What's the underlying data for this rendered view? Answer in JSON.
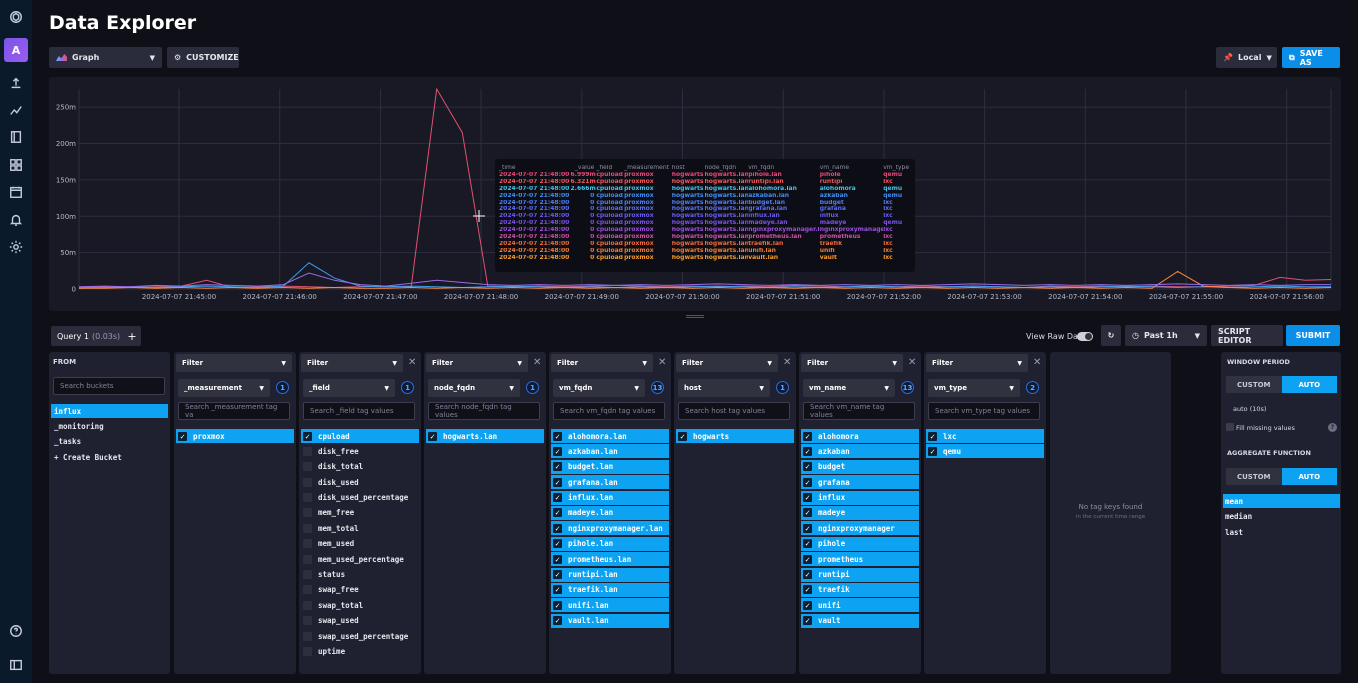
{
  "title": "Data Explorer",
  "nav": {
    "avatar": "A",
    "icons": [
      "logo-icon",
      "upload-icon",
      "graph-icon",
      "book-icon",
      "dashboards-icon",
      "calendar-icon",
      "bell-icon",
      "settings-icon",
      "help-icon",
      "collapse-icon"
    ]
  },
  "toolbar": {
    "graph_label": "Graph",
    "customize_label": "CUSTOMIZE",
    "local_label": "Local",
    "save_as_label": "SAVE AS"
  },
  "chart_data": {
    "type": "line",
    "y_ticks": [
      "250m",
      "200m",
      "150m",
      "100m",
      "50m",
      "0"
    ],
    "ylim": [
      0,
      0.275
    ],
    "x_ticks": [
      "2024-07-07 21:45:00",
      "2024-07-07 21:46:00",
      "2024-07-07 21:47:00",
      "2024-07-07 21:48:00",
      "2024-07-07 21:49:00",
      "2024-07-07 21:50:00",
      "2024-07-07 21:51:00",
      "2024-07-07 21:52:00",
      "2024-07-07 21:53:00",
      "2024-07-07 21:54:00",
      "2024-07-07 21:55:00",
      "2024-07-07 21:56:00"
    ],
    "series": [
      {
        "color": "#e0526e",
        "values": [
          0.002,
          0.003,
          0.002,
          0.003,
          0.004,
          0.012,
          0.002,
          0.003,
          0.004,
          0.003,
          0.002,
          0.003,
          0.004,
          0.003,
          0.275,
          0.215,
          0.004,
          0.003,
          0.004,
          0.003,
          0.004,
          0.005,
          0.004,
          0.003,
          0.004,
          0.003,
          0.004,
          0.003,
          0.005,
          0.004,
          0.003,
          0.004,
          0.003,
          0.004,
          0.003,
          0.004,
          0.003,
          0.002,
          0.004,
          0.003,
          0.004,
          0.003,
          0.004,
          0.003,
          0.003,
          0.004,
          0.005,
          0.016,
          0.012,
          0.013
        ]
      },
      {
        "color": "#3d9be9",
        "values": [
          0.001,
          0.002,
          0.003,
          0.002,
          0.003,
          0.004,
          0.003,
          0.002,
          0.004,
          0.036,
          0.015,
          0.004,
          0.003,
          0.004,
          0.003,
          0.002,
          0.003,
          0.004,
          0.003,
          0.002,
          0.003,
          0.002,
          0.003,
          0.002,
          0.003,
          0.004,
          0.003,
          0.002,
          0.003,
          0.002,
          0.003,
          0.004,
          0.003,
          0.002,
          0.003,
          0.004,
          0.003,
          0.002,
          0.003,
          0.002,
          0.003,
          0.004,
          0.003,
          0.002,
          0.003,
          0.002,
          0.003,
          0.004,
          0.003,
          0.003
        ]
      },
      {
        "color": "#ff8a3d",
        "values": [
          0.001,
          0.001,
          0.002,
          0.001,
          0.002,
          0.001,
          0.002,
          0.001,
          0.002,
          0.001,
          0.002,
          0.001,
          0.001,
          0.002,
          0.001,
          0.002,
          0.001,
          0.002,
          0.001,
          0.002,
          0.001,
          0.002,
          0.001,
          0.002,
          0.001,
          0.002,
          0.001,
          0.002,
          0.001,
          0.002,
          0.001,
          0.002,
          0.001,
          0.002,
          0.001,
          0.002,
          0.001,
          0.002,
          0.001,
          0.002,
          0.001,
          0.002,
          0.001,
          0.024,
          0.004,
          0.002,
          0.001,
          0.002,
          0.001,
          0.002
        ]
      },
      {
        "color": "#9b6be8",
        "values": [
          0.003,
          0.004,
          0.003,
          0.005,
          0.004,
          0.006,
          0.005,
          0.004,
          0.006,
          0.022,
          0.012,
          0.006,
          0.004,
          0.008,
          0.012,
          0.009,
          0.006,
          0.005,
          0.006,
          0.005,
          0.006,
          0.005,
          0.006,
          0.005,
          0.006,
          0.007,
          0.006,
          0.005,
          0.006,
          0.005,
          0.006,
          0.005,
          0.006,
          0.005,
          0.006,
          0.007,
          0.006,
          0.005,
          0.006,
          0.005,
          0.006,
          0.005,
          0.006,
          0.007,
          0.006,
          0.005,
          0.006,
          0.005,
          0.006,
          0.006
        ]
      }
    ]
  },
  "tooltip": {
    "headers": [
      "_time",
      "_value",
      "_field",
      "_measurement",
      "host",
      "node_fqdn",
      "vm_fqdn",
      "vm_name",
      "vm_type"
    ],
    "rows": [
      {
        "color": "#e8477a",
        "cells": [
          "2024-07-07 21:48:00",
          "6.999m",
          "cpuload",
          "proxmox",
          "hogwarts",
          "hogwarts.lan",
          "pihole.lan",
          "pihole",
          "qemu"
        ]
      },
      {
        "color": "#f2555c",
        "cells": [
          "2024-07-07 21:48:00",
          "6.321m",
          "cpuload",
          "proxmox",
          "hogwarts",
          "hogwarts.lan",
          "runtipi.lan",
          "runtipi",
          "lxc"
        ]
      },
      {
        "color": "#47c1e8",
        "cells": [
          "2024-07-07 21:48:00",
          "2.666m",
          "cpuload",
          "proxmox",
          "hogwarts",
          "hogwarts.lan",
          "alohomora.lan",
          "alohomora",
          "qemu"
        ]
      },
      {
        "color": "#3f8ff0",
        "cells": [
          "2024-07-07 21:48:00",
          "0",
          "cpuload",
          "proxmox",
          "hogwarts",
          "hogwarts.lan",
          "azkaban.lan",
          "azkaban",
          "qemu"
        ]
      },
      {
        "color": "#4f7ef7",
        "cells": [
          "2024-07-07 21:48:00",
          "0",
          "cpuload",
          "proxmox",
          "hogwarts",
          "hogwarts.lan",
          "budget.lan",
          "budget",
          "lxc"
        ]
      },
      {
        "color": "#5b6df5",
        "cells": [
          "2024-07-07 21:48:00",
          "0",
          "cpuload",
          "proxmox",
          "hogwarts",
          "hogwarts.lan",
          "grafana.lan",
          "grafana",
          "lxc"
        ]
      },
      {
        "color": "#6a5cee",
        "cells": [
          "2024-07-07 21:48:00",
          "0",
          "cpuload",
          "proxmox",
          "hogwarts",
          "hogwarts.lan",
          "influx.lan",
          "influx",
          "lxc"
        ]
      },
      {
        "color": "#7b52e6",
        "cells": [
          "2024-07-07 21:48:00",
          "0",
          "cpuload",
          "proxmox",
          "hogwarts",
          "hogwarts.lan",
          "madeye.lan",
          "madeye",
          "qemu"
        ]
      },
      {
        "color": "#9b4ee0",
        "cells": [
          "2024-07-07 21:48:00",
          "0",
          "cpuload",
          "proxmox",
          "hogwarts",
          "hogwarts.lan",
          "nginxproxymanager.lan",
          "nginxproxymanager",
          "lxc"
        ]
      },
      {
        "color": "#d04fa8",
        "cells": [
          "2024-07-07 21:48:00",
          "0",
          "cpuload",
          "proxmox",
          "hogwarts",
          "hogwarts.lan",
          "prometheus.lan",
          "prometheus",
          "lxc"
        ]
      },
      {
        "color": "#f06a3f",
        "cells": [
          "2024-07-07 21:48:00",
          "0",
          "cpuload",
          "proxmox",
          "hogwarts",
          "hogwarts.lan",
          "traefik.lan",
          "traefik",
          "lxc"
        ]
      },
      {
        "color": "#f27e32",
        "cells": [
          "2024-07-07 21:48:00",
          "0",
          "cpuload",
          "proxmox",
          "hogwarts",
          "hogwarts.lan",
          "unifi.lan",
          "unifi",
          "lxc"
        ]
      },
      {
        "color": "#f79a2a",
        "cells": [
          "2024-07-07 21:48:00",
          "0",
          "cpuload",
          "proxmox",
          "hogwarts",
          "hogwarts.lan",
          "vault.lan",
          "vault",
          "lxc"
        ]
      }
    ]
  },
  "query": {
    "tab_label": "Query 1",
    "tab_time": "(0.03s)",
    "add_label": "+",
    "raw_label": "View Raw Data",
    "range_label": "Past 1h",
    "script_editor_label": "SCRIPT EDITOR",
    "submit_label": "SUBMIT"
  },
  "from": {
    "header": "FROM",
    "search_placeholder": "Search buckets",
    "buckets": [
      "influx",
      "_monitoring",
      "_tasks",
      "+ Create Bucket"
    ]
  },
  "filters": [
    {
      "key": "_measurement",
      "count": "1",
      "placeholder": "Search _measurement tag va",
      "items": [
        {
          "v": "proxmox",
          "on": true
        }
      ]
    },
    {
      "key": "_field",
      "count": "1",
      "placeholder": "Search _field tag values",
      "items": [
        {
          "v": "cpuload",
          "on": true
        },
        {
          "v": "disk_free",
          "on": false
        },
        {
          "v": "disk_total",
          "on": false
        },
        {
          "v": "disk_used",
          "on": false
        },
        {
          "v": "disk_used_percentage",
          "on": false
        },
        {
          "v": "mem_free",
          "on": false
        },
        {
          "v": "mem_total",
          "on": false
        },
        {
          "v": "mem_used",
          "on": false
        },
        {
          "v": "mem_used_percentage",
          "on": false
        },
        {
          "v": "status",
          "on": false
        },
        {
          "v": "swap_free",
          "on": false
        },
        {
          "v": "swap_total",
          "on": false
        },
        {
          "v": "swap_used",
          "on": false
        },
        {
          "v": "swap_used_percentage",
          "on": false
        },
        {
          "v": "uptime",
          "on": false
        }
      ]
    },
    {
      "key": "node_fqdn",
      "count": "1",
      "placeholder": "Search node_fqdn tag values",
      "items": [
        {
          "v": "hogwarts.lan",
          "on": true
        }
      ]
    },
    {
      "key": "vm_fqdn",
      "count": "13",
      "placeholder": "Search vm_fqdn tag values",
      "items": [
        {
          "v": "alohomora.lan",
          "on": true
        },
        {
          "v": "azkaban.lan",
          "on": true
        },
        {
          "v": "budget.lan",
          "on": true
        },
        {
          "v": "grafana.lan",
          "on": true
        },
        {
          "v": "influx.lan",
          "on": true
        },
        {
          "v": "madeye.lan",
          "on": true
        },
        {
          "v": "nginxproxymanager.lan",
          "on": true
        },
        {
          "v": "pihole.lan",
          "on": true
        },
        {
          "v": "prometheus.lan",
          "on": true
        },
        {
          "v": "runtipi.lan",
          "on": true
        },
        {
          "v": "traefik.lan",
          "on": true
        },
        {
          "v": "unifi.lan",
          "on": true
        },
        {
          "v": "vault.lan",
          "on": true
        }
      ]
    },
    {
      "key": "host",
      "count": "1",
      "placeholder": "Search host tag values",
      "items": [
        {
          "v": "hogwarts",
          "on": true
        }
      ]
    },
    {
      "key": "vm_name",
      "count": "13",
      "placeholder": "Search vm_name tag values",
      "items": [
        {
          "v": "alohomora",
          "on": true
        },
        {
          "v": "azkaban",
          "on": true
        },
        {
          "v": "budget",
          "on": true
        },
        {
          "v": "grafana",
          "on": true
        },
        {
          "v": "influx",
          "on": true
        },
        {
          "v": "madeye",
          "on": true
        },
        {
          "v": "nginxproxymanager",
          "on": true
        },
        {
          "v": "pihole",
          "on": true
        },
        {
          "v": "prometheus",
          "on": true
        },
        {
          "v": "runtipi",
          "on": true
        },
        {
          "v": "traefik",
          "on": true
        },
        {
          "v": "unifi",
          "on": true
        },
        {
          "v": "vault",
          "on": true
        }
      ]
    },
    {
      "key": "vm_type",
      "count": "2",
      "placeholder": "Search vm_type tag values",
      "items": [
        {
          "v": "lxc",
          "on": true
        },
        {
          "v": "qemu",
          "on": true
        }
      ]
    }
  ],
  "filter_label": "Filter",
  "empty": {
    "title": "No tag keys found",
    "subtitle": "in the current time range"
  },
  "window": {
    "header": "WINDOW PERIOD",
    "custom": "CUSTOM",
    "auto": "AUTO",
    "value": "auto (10s)",
    "fill_missing": "Fill missing values"
  },
  "aggregate": {
    "header": "AGGREGATE FUNCTION",
    "custom": "CUSTOM",
    "auto": "AUTO",
    "functions": [
      {
        "v": "mean",
        "on": true
      },
      {
        "v": "median",
        "on": false
      },
      {
        "v": "last",
        "on": false
      }
    ]
  }
}
